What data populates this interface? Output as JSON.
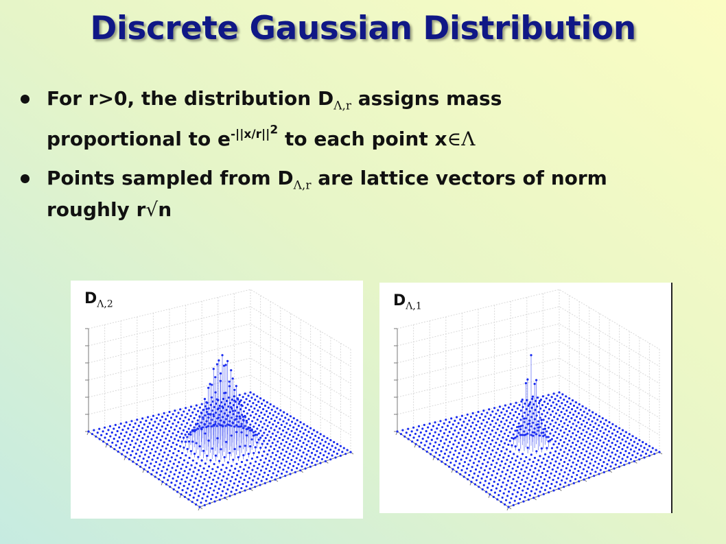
{
  "title": "Discrete Gaussian Distribution",
  "bullet1": {
    "t1": "For r>0, the distribution D",
    "sub1": "Λ,r",
    "t2": " assigns mass",
    "t3": "proportional to e",
    "sup": "-||x/r||",
    "sup2": "2",
    "t4": " to each point x",
    "sym": "∈Λ"
  },
  "bullet2": {
    "t1": "Points sampled from D",
    "sub1": "Λ,r",
    "t2": " are lattice vectors of norm",
    "t3": "roughly r",
    "sym": "√",
    "t4": "n"
  },
  "plots": [
    {
      "label_main": "D",
      "label_sub": "Λ,2",
      "r": 2
    },
    {
      "label_main": "D",
      "label_sub": "Λ,1",
      "r": 1
    }
  ],
  "colors": {
    "title": "#101886",
    "points": "#1a2cf0"
  }
}
